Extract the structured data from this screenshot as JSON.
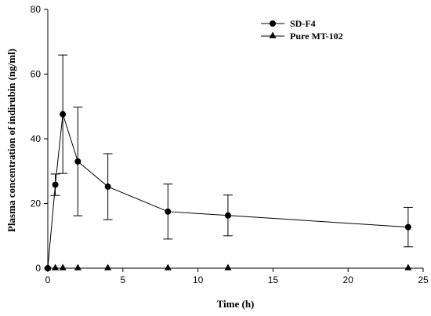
{
  "chart_data": {
    "type": "line",
    "title": "",
    "xlabel": "Time (h)",
    "ylabel": "Plasma concentration of indirubin (ng/ml)",
    "xlim": [
      0,
      25
    ],
    "ylim": [
      0,
      80
    ],
    "xticks": [
      "0",
      "5",
      "10",
      "15",
      "20",
      "25"
    ],
    "yticks": [
      "0",
      "20",
      "40",
      "60",
      "80"
    ],
    "grid": false,
    "legend_position": "top-right",
    "series": [
      {
        "name": "SD-F4",
        "marker": "circle",
        "x": [
          0,
          0.5,
          1,
          2,
          4,
          8,
          12,
          24
        ],
        "y": [
          0,
          25.8,
          47.6,
          33.0,
          25.2,
          17.5,
          16.3,
          12.7
        ],
        "error": [
          0,
          3.3,
          18.3,
          16.8,
          10.2,
          8.5,
          6.3,
          6.1
        ]
      },
      {
        "name": "Pure MT-102",
        "marker": "triangle",
        "x": [
          0,
          0.5,
          1,
          2,
          4,
          8,
          12,
          24
        ],
        "y": [
          0,
          0,
          0,
          0,
          0,
          0,
          0,
          0
        ]
      }
    ]
  }
}
